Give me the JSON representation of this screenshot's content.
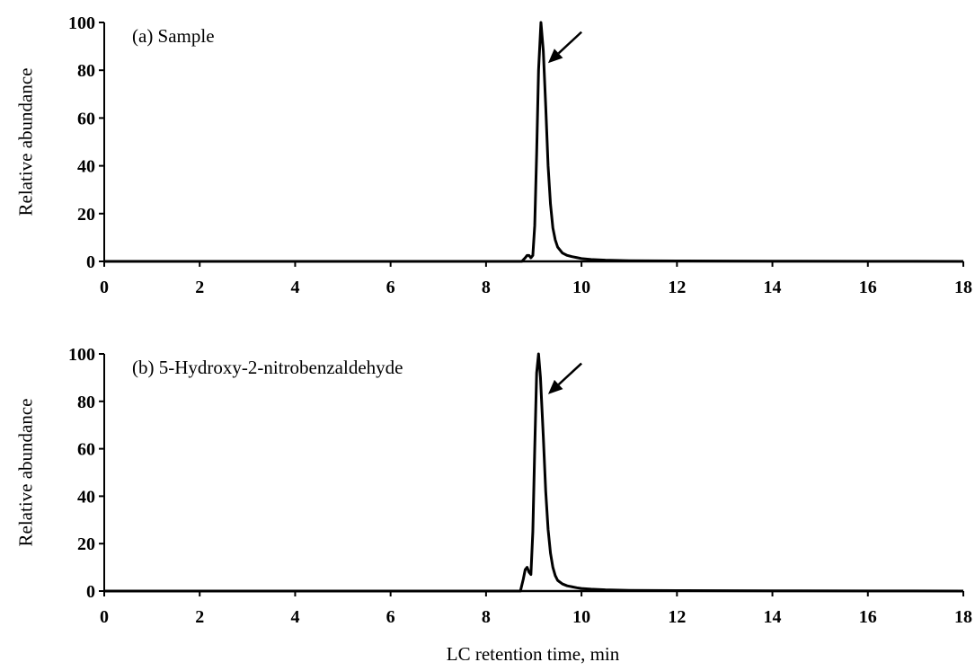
{
  "chart_data": [
    {
      "type": "line",
      "annotation": "(a) Sample",
      "ylabel": "Relative abundance",
      "xlim": [
        0,
        18
      ],
      "ylim": [
        0,
        100
      ],
      "xticks": [
        0,
        2,
        4,
        6,
        8,
        10,
        12,
        14,
        16,
        18
      ],
      "yticks": [
        0,
        20,
        40,
        60,
        80,
        100
      ],
      "grid": false,
      "series": [
        {
          "color": "#000000",
          "x": [
            0.0,
            8.5,
            8.75,
            8.82,
            8.86,
            8.9,
            8.94,
            8.98,
            9.02,
            9.06,
            9.1,
            9.15,
            9.2,
            9.25,
            9.3,
            9.35,
            9.4,
            9.45,
            9.5,
            9.6,
            9.7,
            9.8,
            9.9,
            10.0,
            10.2,
            10.5,
            11.0,
            12.0,
            14.0,
            16.0,
            18.0
          ],
          "y": [
            0,
            0,
            0,
            1.5,
            2.5,
            2.5,
            1.5,
            2.5,
            15,
            45,
            80,
            100,
            88,
            65,
            40,
            24,
            14,
            9,
            6,
            3.5,
            2.5,
            2,
            1.6,
            1.2,
            0.8,
            0.5,
            0.3,
            0.2,
            0.1,
            0.05,
            0
          ]
        }
      ],
      "arrow_target": [
        9.3,
        83
      ],
      "arrow_tail": [
        10.0,
        96
      ]
    },
    {
      "type": "line",
      "annotation": "(b) 5-Hydroxy-2-nitrobenzaldehyde",
      "ylabel": "Relative abundance",
      "xlim": [
        0,
        18
      ],
      "ylim": [
        0,
        100
      ],
      "xticks": [
        0,
        2,
        4,
        6,
        8,
        10,
        12,
        14,
        16,
        18
      ],
      "yticks": [
        0,
        20,
        40,
        60,
        80,
        100
      ],
      "grid": false,
      "series": [
        {
          "color": "#000000",
          "x": [
            0.0,
            8.6,
            8.72,
            8.78,
            8.82,
            8.86,
            8.9,
            8.94,
            8.98,
            9.02,
            9.06,
            9.1,
            9.14,
            9.2,
            9.25,
            9.3,
            9.35,
            9.4,
            9.45,
            9.5,
            9.6,
            9.7,
            9.8,
            9.9,
            10.0,
            10.2,
            10.5,
            11.0,
            12.0,
            14.0,
            16.0,
            18.0
          ],
          "y": [
            0,
            0,
            0,
            5,
            9,
            10,
            8,
            7,
            25,
            60,
            92,
            100,
            90,
            65,
            42,
            26,
            16,
            10,
            6.5,
            4.5,
            3,
            2.2,
            1.8,
            1.4,
            1.1,
            0.8,
            0.5,
            0.3,
            0.2,
            0.1,
            0.05,
            0
          ]
        }
      ],
      "arrow_target": [
        9.3,
        83
      ],
      "arrow_tail": [
        10.0,
        96
      ]
    }
  ],
  "xlabel": "LC retention time, min"
}
